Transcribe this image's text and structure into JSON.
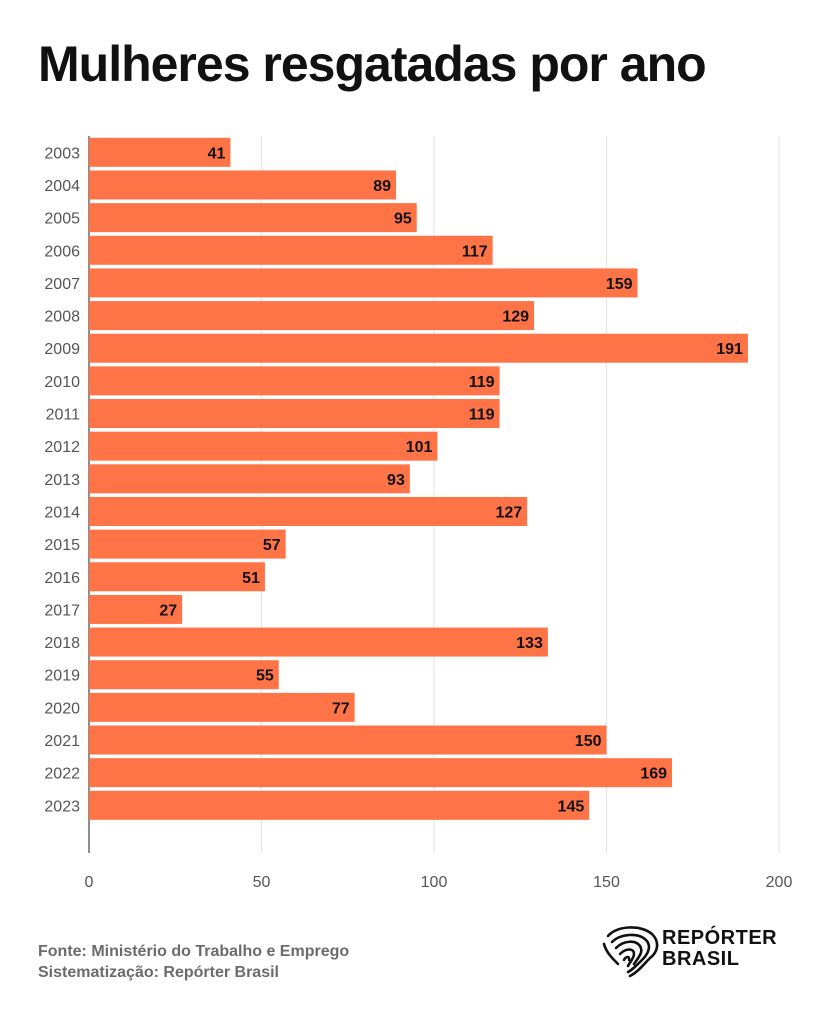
{
  "title": "Mulheres resgatadas por ano",
  "source": {
    "line1": "Fonte: Ministério do Trabalho e Emprego",
    "line2": "Sistematização: Repórter Brasil"
  },
  "logo": {
    "line1": "REPÓRTER",
    "line2": "BRASIL",
    "icon": "brazil-fingerprint-icon"
  },
  "colors": {
    "bar": "#ff7447",
    "bar_edge": "#ef5a2b",
    "grid": "#e5e5e5",
    "axis": "#444444",
    "text": "#111111",
    "tick": "#555555"
  },
  "chart_data": {
    "type": "bar",
    "orientation": "horizontal",
    "categories": [
      "2003",
      "2004",
      "2005",
      "2006",
      "2007",
      "2008",
      "2009",
      "2010",
      "2011",
      "2012",
      "2013",
      "2014",
      "2015",
      "2016",
      "2017",
      "2018",
      "2019",
      "2020",
      "2021",
      "2022",
      "2023"
    ],
    "values": [
      41,
      89,
      95,
      117,
      159,
      129,
      191,
      119,
      119,
      101,
      93,
      127,
      57,
      51,
      27,
      133,
      55,
      77,
      150,
      169,
      145
    ],
    "xlim": [
      0,
      200
    ],
    "xticks": [
      0,
      50,
      100,
      150,
      200
    ],
    "grid": "vertical",
    "data_labels": true
  }
}
